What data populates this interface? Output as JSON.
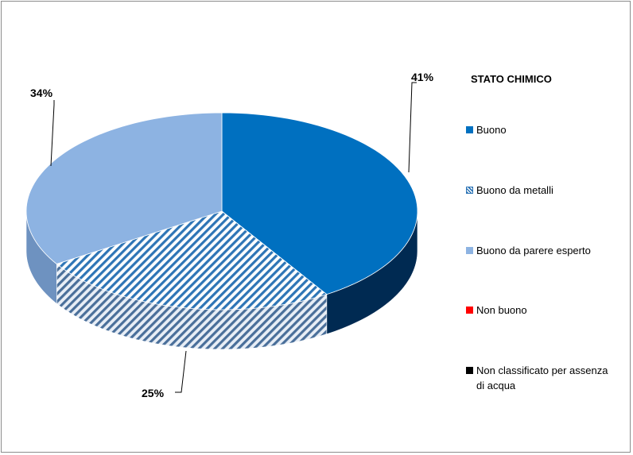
{
  "chart_data": {
    "type": "pie",
    "style": "3d-exploded-none",
    "title": "STATO CHIMICO",
    "legend_position": "right",
    "slices": [
      {
        "name": "Buono",
        "value": 41,
        "label": "41%",
        "color": "#0070C0",
        "side_color": "#002A52",
        "pattern": "solid"
      },
      {
        "name": "Buono da metalli",
        "value": 25,
        "label": "25%",
        "color": "#2E75B6",
        "side_color": "#5B84AE",
        "pattern": "diagonal-hatch"
      },
      {
        "name": "Buono da parere esperto",
        "value": 34,
        "label": "34%",
        "color": "#8DB3E2",
        "side_color": "#6E92C0",
        "pattern": "solid"
      },
      {
        "name": "Non buono",
        "value": 0,
        "label": "",
        "color": "#FF0000",
        "pattern": "solid"
      },
      {
        "name": "Non classificato per assenza di acqua",
        "value": 0,
        "label": "",
        "color": "#000000",
        "pattern": "solid"
      }
    ]
  }
}
